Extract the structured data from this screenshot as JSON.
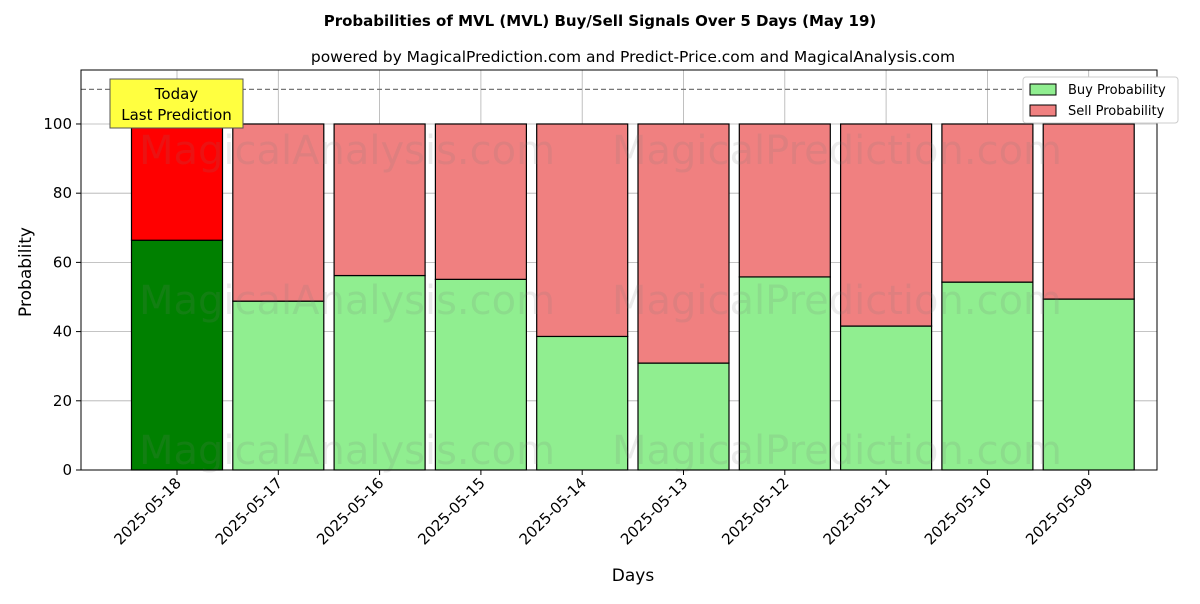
{
  "chart_data": {
    "type": "bar",
    "title": "Probabilities of MVL (MVL) Buy/Sell Signals Over 5 Days (May 19)",
    "subtitle": "powered by MagicalPrediction.com and Predict-Price.com and MagicalAnalysis.com",
    "xlabel": "Days",
    "ylabel": "Probability",
    "ylim": [
      0,
      115.6
    ],
    "yticks": [
      0,
      20,
      40,
      60,
      80,
      100
    ],
    "categories": [
      "2025-05-18",
      "2025-05-17",
      "2025-05-16",
      "2025-05-15",
      "2025-05-14",
      "2025-05-13",
      "2025-05-12",
      "2025-05-11",
      "2025-05-10",
      "2025-05-09"
    ],
    "series": [
      {
        "name": "Buy Probability",
        "values": [
          66.4,
          48.8,
          56.2,
          55.1,
          38.6,
          30.9,
          55.8,
          41.6,
          54.3,
          49.4
        ],
        "color": "#90ee90",
        "today_color": "#008000"
      },
      {
        "name": "Sell Probability",
        "values": [
          33.6,
          51.2,
          43.8,
          44.9,
          61.4,
          69.1,
          44.2,
          58.4,
          45.7,
          50.6
        ],
        "color": "#f08080",
        "today_color": "#ff0000"
      }
    ],
    "threshold_line": 110,
    "annotation": {
      "line1": "Today",
      "line2": "Last Prediction"
    },
    "legend_position": "top-right",
    "grid": true,
    "watermarks": [
      "MagicalAnalysis.com",
      "MagicalPrediction.com"
    ]
  }
}
